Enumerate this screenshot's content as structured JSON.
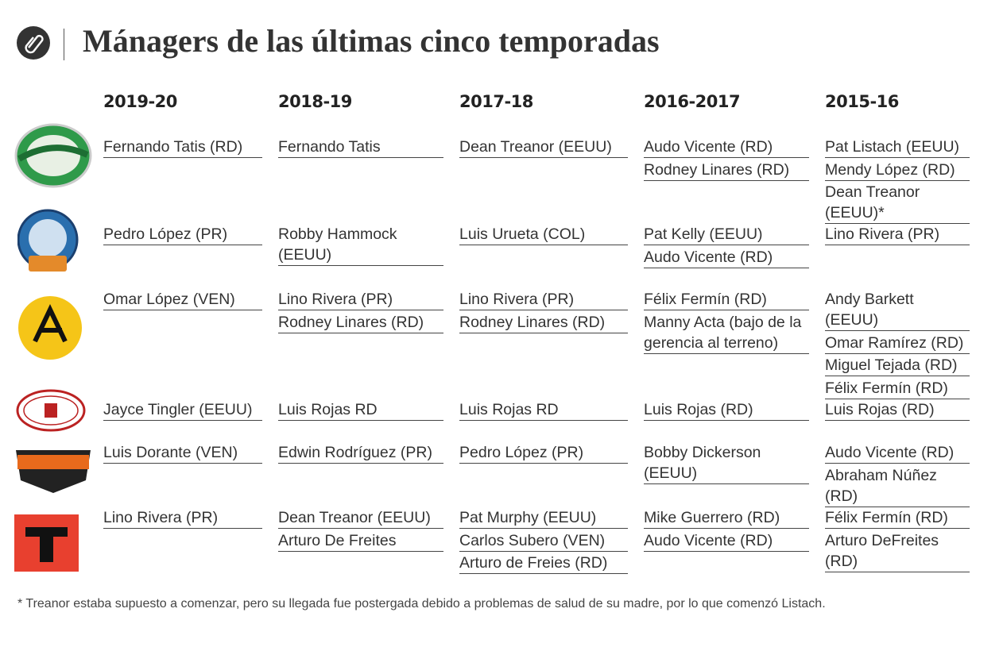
{
  "header": {
    "title": "Mánagers de las últimas cinco temporadas"
  },
  "table": {
    "headers": [
      "2019-20",
      "2018-19",
      "2017-18",
      "2016-2017",
      "2015-16"
    ],
    "rows": [
      [
        [
          "Fernando Tatis (RD)"
        ],
        [
          "Fernando Tatis"
        ],
        [
          "Dean Treanor (EEUU)"
        ],
        [
          "Audo Vicente (RD)",
          "Rodney Linares (RD)"
        ],
        [
          "Pat Listach (EEUU)",
          "Mendy López (RD)",
          "Dean Treanor (EEUU)*"
        ]
      ],
      [
        [
          "Pedro López (PR)"
        ],
        [
          "Robby Hammock (EEUU)"
        ],
        [
          "Luis Urueta (COL)"
        ],
        [
          "Pat Kelly (EEUU)",
          "Audo Vicente (RD)"
        ],
        [
          "Lino Rivera (PR)"
        ]
      ],
      [
        [
          "Omar López (VEN)"
        ],
        [
          "Lino Rivera (PR)",
          "Rodney Linares (RD)"
        ],
        [
          "Lino Rivera (PR)",
          "Rodney Linares (RD)"
        ],
        [
          "Félix Fermín (RD)",
          "Manny Acta (bajo de la gerencia al terreno)"
        ],
        [
          "Andy Barkett (EEUU)",
          "Omar Ramírez (RD)",
          "Miguel Tejada (RD)",
          "Félix Fermín (RD)"
        ]
      ],
      [
        [
          "Jayce Tingler  (EEUU)"
        ],
        [
          "Luis Rojas RD"
        ],
        [
          "Luis Rojas RD"
        ],
        [
          "Luis Rojas (RD)"
        ],
        [
          "Luis Rojas (RD)"
        ]
      ],
      [
        [
          "Luis Dorante (VEN)"
        ],
        [
          "Edwin Rodríguez (PR)"
        ],
        [
          "Pedro López (PR)"
        ],
        [
          "Bobby Dickerson (EEUU)"
        ],
        [
          "Audo Vicente (RD)",
          "Abraham Núñez (RD)"
        ]
      ],
      [
        [
          "Lino Rivera (PR)"
        ],
        [
          "Dean Treanor (EEUU)",
          "Arturo De Freites"
        ],
        [
          "Pat Murphy (EEUU)",
          "Carlos Subero (VEN)",
          "Arturo de Freies (RD)"
        ],
        [
          "Mike Guerrero (RD)",
          "Audo Vicente (RD)"
        ],
        [
          "Félix Fermín (RD)",
          "Arturo DeFreites (RD)"
        ]
      ]
    ]
  },
  "footnote": "* Treanor estaba supuesto a comenzar, pero su llegada fue postergada debido a problemas de salud de su madre, por lo que comenzó Listach."
}
